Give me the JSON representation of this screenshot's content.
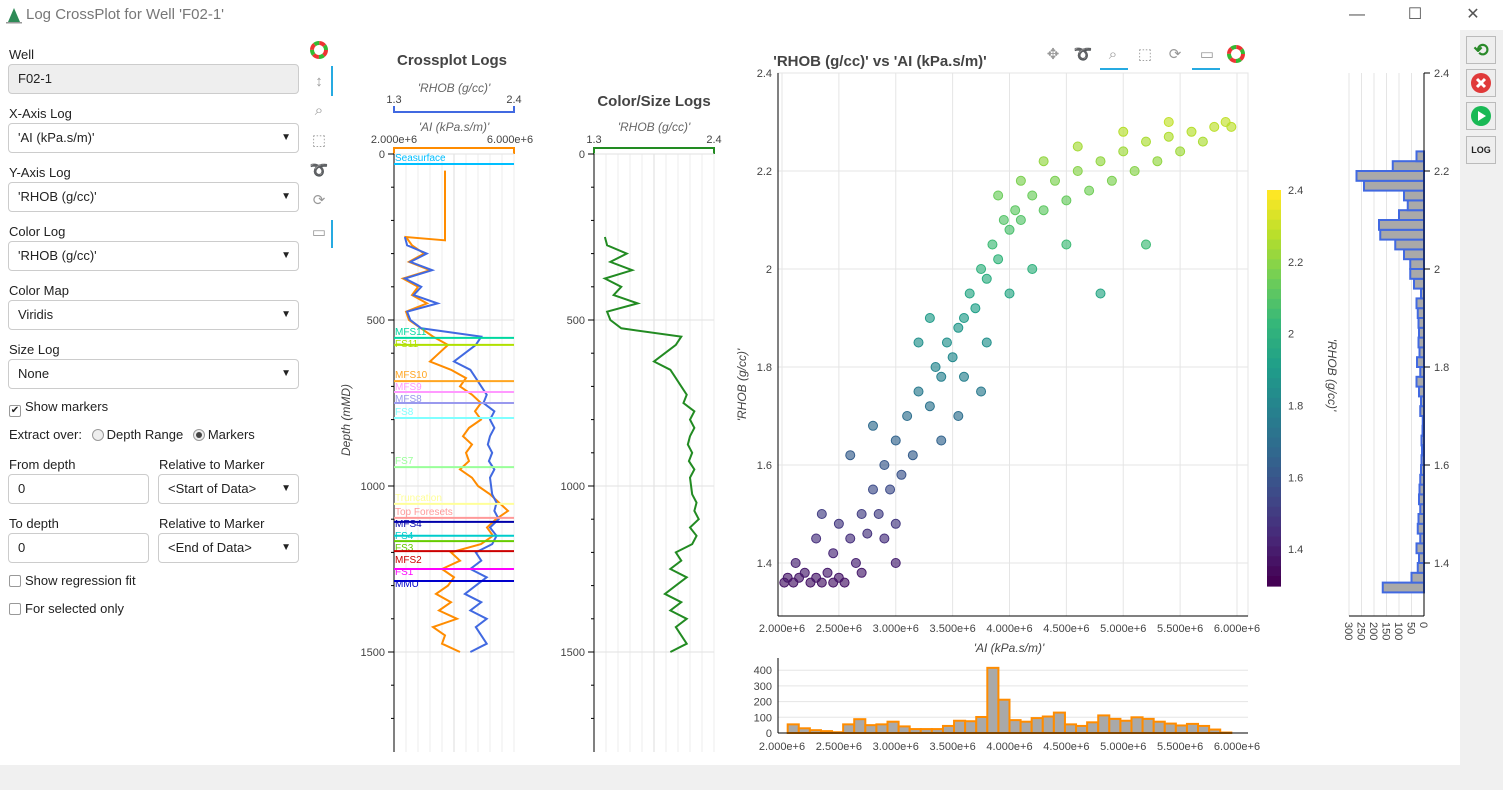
{
  "window": {
    "title": "Log CrossPlot for Well 'F02-1'",
    "minimize": "—",
    "maximize": "☐",
    "close": "✕"
  },
  "form": {
    "well_label": "Well",
    "well_value": "F02-1",
    "xaxis_label": "X-Axis Log",
    "xaxis_value": "'AI (kPa.s/m)'",
    "yaxis_label": "Y-Axis Log",
    "yaxis_value": "'RHOB (g/cc)'",
    "color_label": "Color Log",
    "color_value": "'RHOB (g/cc)'",
    "cmap_label": "Color Map",
    "cmap_value": "Viridis",
    "size_label": "Size Log",
    "size_value": "None",
    "show_markers": "Show markers",
    "show_markers_checked": true,
    "extract_label": "Extract over:",
    "depth_range": "Depth Range",
    "markers": "Markers",
    "extract_selected": "Markers",
    "from_label": "From depth",
    "from_value": "0",
    "rel1_label": "Relative to Marker",
    "rel1_value": "<Start of Data>",
    "to_label": "To depth",
    "to_value": "0",
    "rel2_label": "Relative to Marker",
    "rel2_value": "<End of Data>",
    "regression": "Show regression fit",
    "regression_checked": false,
    "selected_only": "For selected only",
    "selected_only_checked": false
  },
  "left_tools": [
    "bokeh-logo-icon",
    "pan-vertical-icon",
    "box-zoom-icon",
    "box-select-icon",
    "lasso-icon",
    "reset-icon",
    "hover-icon"
  ],
  "plot_tools": [
    "pan-icon",
    "lasso-icon",
    "box-zoom-icon",
    "box-select-icon",
    "reset-icon",
    "hover-icon",
    "bokeh-logo-icon"
  ],
  "right_buttons": [
    "refresh-icon",
    "close-icon",
    "run-icon",
    "log-export-icon"
  ],
  "logs_panel": {
    "title": "Crossplot Logs",
    "rhob_label": "'RHOB (g/cc)'",
    "rhob_min": "1.3",
    "rhob_max": "2.4",
    "ai_label": "'AI (kPa.s/m)'",
    "ai_min": "2.000e+6",
    "ai_max": "6.000e+6",
    "depth_label": "Depth (mMD)",
    "depth_ticks": [
      "0",
      "500",
      "1000",
      "1500"
    ]
  },
  "color_panel": {
    "title": "Color/Size Logs",
    "label": "'RHOB (g/cc)'",
    "min": "1.3",
    "max": "2.4",
    "depth_ticks": [
      "0",
      "500",
      "1000",
      "1500"
    ]
  },
  "colors": {
    "rhob": "#4169e1",
    "ai": "#ff8c00",
    "color_log": "#228b22",
    "hist_fill": "#a9a9a9"
  },
  "markers": [
    {
      "name": "Seasurface",
      "depth": 30,
      "color": "#00bfff"
    },
    {
      "name": "MFS11",
      "depth": 554,
      "color": "#00d8a0"
    },
    {
      "name": "FS11",
      "depth": 575,
      "color": "#b0e000"
    },
    {
      "name": "MFS10",
      "depth": 684,
      "color": "#ffa520"
    },
    {
      "name": "MFS9",
      "depth": 717,
      "color": "#ff99ff"
    },
    {
      "name": "MFS8",
      "depth": 750,
      "color": "#9999ee"
    },
    {
      "name": "FS8",
      "depth": 795,
      "color": "#80ffff"
    },
    {
      "name": "FS7",
      "depth": 943,
      "color": "#99ff99"
    },
    {
      "name": "Truncation",
      "depth": 1054,
      "color": "#ffff99"
    },
    {
      "name": "Top Foresets",
      "depth": 1096,
      "color": "#ff9999"
    },
    {
      "name": "MFS4",
      "depth": 1108,
      "color": "#0000aa"
    },
    {
      "name": "FS4",
      "depth": 1150,
      "color": "#00cccc"
    },
    {
      "name": "FS3",
      "depth": 1166,
      "color": "#66cc00"
    },
    {
      "name": "MFS2",
      "depth": 1196,
      "color": "#cc0000"
    },
    {
      "name": "FS1",
      "depth": 1250,
      "color": "#ff00ff"
    },
    {
      "name": "MMU",
      "depth": 1286,
      "color": "#0000cc"
    }
  ],
  "well_logs": {
    "depth_start": 250,
    "depth_step": 25,
    "rhob": [
      1.4,
      1.42,
      1.6,
      1.45,
      1.65,
      1.4,
      1.55,
      1.48,
      1.7,
      1.42,
      1.45,
      1.55,
      2.1,
      2.05,
      1.95,
      1.85,
      2.0,
      2.05,
      2.1,
      2.15,
      2.12,
      2.22,
      2.18,
      2.22,
      2.18,
      2.16,
      2.2,
      2.17,
      2.22,
      2.18,
      2.19,
      2.2,
      2.24,
      2.22,
      2.26,
      2.18,
      2.24,
      2.2,
      2.05,
      2.1,
      2.0,
      2.15,
      2.05,
      1.95,
      2.1,
      2.0,
      2.15,
      2.05,
      2.1,
      2.15,
      2.0
    ],
    "ai_top": {
      "depth_from": 50,
      "depth_to": 260,
      "value": 3.7
    },
    "ai": [
      2.4,
      2.6,
      3.0,
      2.5,
      3.2,
      2.3,
      2.8,
      2.6,
      3.1,
      2.4,
      2.5,
      2.9,
      3.3,
      3.8,
      3.5,
      3.2,
      3.9,
      4.4,
      4.2,
      4.6,
      4.9,
      4.7,
      4.9,
      4.5,
      4.3,
      4.6,
      4.4,
      4.5,
      4.2,
      4.6,
      4.8,
      5.2,
      5.5,
      5.8,
      5.4,
      5.1,
      5.3,
      4.9,
      3.9,
      4.2,
      3.6,
      4.0,
      3.8,
      3.4,
      3.9,
      3.5,
      4.1,
      3.3,
      3.7,
      3.6,
      4.2
    ]
  },
  "scatter": {
    "title": "'RHOB (g/cc)' vs 'AI (kPa.s/m)'",
    "xlabel": "'AI (kPa.s/m)'",
    "ylabel": "'RHOB (g/cc)'",
    "x_ticks": [
      "2.000e+6",
      "2.500e+6",
      "3.000e+6",
      "3.500e+6",
      "4.000e+6",
      "4.500e+6",
      "5.000e+6",
      "5.500e+6",
      "6.000e+6"
    ],
    "y_ticks": [
      "1.4",
      "1.6",
      "1.8",
      "2",
      "2.2",
      "2.4"
    ],
    "colorbar_label": "'RHOB (g/cc)'",
    "colorbar_ticks": [
      "1.4",
      "1.6",
      "1.8",
      "2",
      "2.2",
      "2.4"
    ],
    "colormap": "Viridis",
    "color_range": [
      1.3,
      2.4
    ],
    "points_ai_e6_rhob": [
      [
        2.02,
        1.36
      ],
      [
        2.05,
        1.37
      ],
      [
        2.1,
        1.36
      ],
      [
        2.12,
        1.4
      ],
      [
        2.15,
        1.37
      ],
      [
        2.2,
        1.38
      ],
      [
        2.25,
        1.36
      ],
      [
        2.3,
        1.37
      ],
      [
        2.35,
        1.36
      ],
      [
        2.4,
        1.38
      ],
      [
        2.45,
        1.36
      ],
      [
        2.5,
        1.37
      ],
      [
        2.55,
        1.36
      ],
      [
        2.3,
        1.45
      ],
      [
        2.35,
        1.5
      ],
      [
        2.45,
        1.42
      ],
      [
        2.5,
        1.48
      ],
      [
        2.6,
        1.45
      ],
      [
        2.65,
        1.4
      ],
      [
        2.7,
        1.5
      ],
      [
        2.75,
        1.46
      ],
      [
        2.8,
        1.55
      ],
      [
        2.85,
        1.5
      ],
      [
        2.9,
        1.6
      ],
      [
        2.95,
        1.55
      ],
      [
        3.0,
        1.65
      ],
      [
        3.05,
        1.58
      ],
      [
        3.1,
        1.7
      ],
      [
        3.15,
        1.62
      ],
      [
        3.2,
        1.75
      ],
      [
        2.9,
        1.45
      ],
      [
        3.0,
        1.48
      ],
      [
        2.6,
        1.62
      ],
      [
        2.8,
        1.68
      ],
      [
        3.3,
        1.72
      ],
      [
        3.35,
        1.8
      ],
      [
        3.4,
        1.78
      ],
      [
        3.45,
        1.85
      ],
      [
        3.5,
        1.82
      ],
      [
        3.55,
        1.88
      ],
      [
        3.6,
        1.9
      ],
      [
        3.65,
        1.95
      ],
      [
        3.7,
        1.92
      ],
      [
        3.75,
        2.0
      ],
      [
        3.8,
        1.98
      ],
      [
        3.85,
        2.05
      ],
      [
        3.9,
        2.02
      ],
      [
        3.3,
        1.9
      ],
      [
        3.2,
        1.85
      ],
      [
        3.55,
        1.7
      ],
      [
        3.75,
        1.75
      ],
      [
        3.95,
        2.1
      ],
      [
        4.0,
        2.08
      ],
      [
        4.05,
        2.12
      ],
      [
        4.1,
        2.1
      ],
      [
        4.2,
        2.15
      ],
      [
        4.3,
        2.12
      ],
      [
        4.4,
        2.18
      ],
      [
        4.5,
        2.14
      ],
      [
        4.6,
        2.2
      ],
      [
        4.7,
        2.16
      ],
      [
        4.8,
        2.22
      ],
      [
        4.9,
        2.18
      ],
      [
        5.0,
        2.24
      ],
      [
        5.1,
        2.2
      ],
      [
        5.2,
        2.26
      ],
      [
        5.3,
        2.22
      ],
      [
        5.4,
        2.27
      ],
      [
        5.5,
        2.24
      ],
      [
        5.6,
        2.28
      ],
      [
        5.7,
        2.26
      ],
      [
        5.8,
        2.29
      ],
      [
        5.9,
        2.3
      ],
      [
        5.95,
        2.29
      ],
      [
        4.0,
        1.95
      ],
      [
        4.2,
        2.0
      ],
      [
        4.5,
        2.05
      ],
      [
        4.8,
        1.95
      ],
      [
        5.2,
        2.05
      ],
      [
        4.6,
        2.25
      ],
      [
        5.0,
        2.28
      ],
      [
        5.4,
        2.3
      ],
      [
        3.9,
        2.15
      ],
      [
        4.3,
        2.22
      ],
      [
        3.6,
        1.78
      ],
      [
        3.4,
        1.65
      ],
      [
        3.8,
        1.85
      ],
      [
        4.1,
        2.18
      ],
      [
        3.0,
        1.4
      ],
      [
        2.7,
        1.38
      ]
    ]
  },
  "x_hist": {
    "y_ticks": [
      "0",
      "100",
      "200",
      "300",
      "400"
    ],
    "bin_start_e6": 2.05,
    "bin_width_e6": 0.0975,
    "counts": [
      55,
      30,
      18,
      12,
      5,
      55,
      88,
      50,
      55,
      72,
      42,
      25,
      25,
      25,
      45,
      78,
      75,
      102,
      415,
      212,
      82,
      72,
      95,
      105,
      130,
      55,
      45,
      68,
      112,
      90,
      78,
      100,
      90,
      72,
      60,
      48,
      58,
      45,
      22,
      3
    ]
  },
  "y_hist": {
    "x_ticks": [
      "300",
      "250",
      "200",
      "150",
      "100",
      "50",
      "0"
    ],
    "y_ticks": [
      "1.4",
      "1.6",
      "1.8",
      "2",
      "2.2",
      "2.4"
    ],
    "bin_start": 1.34,
    "bin_width": 0.02,
    "counts": [
      165,
      50,
      25,
      20,
      30,
      15,
      25,
      22,
      15,
      20,
      18,
      15,
      12,
      10,
      8,
      10,
      6,
      5,
      15,
      12,
      20,
      30,
      15,
      28,
      18,
      22,
      20,
      22,
      25,
      30,
      12,
      40,
      55,
      55,
      80,
      115,
      175,
      180,
      100,
      65,
      80,
      240,
      270,
      125,
      30
    ]
  }
}
